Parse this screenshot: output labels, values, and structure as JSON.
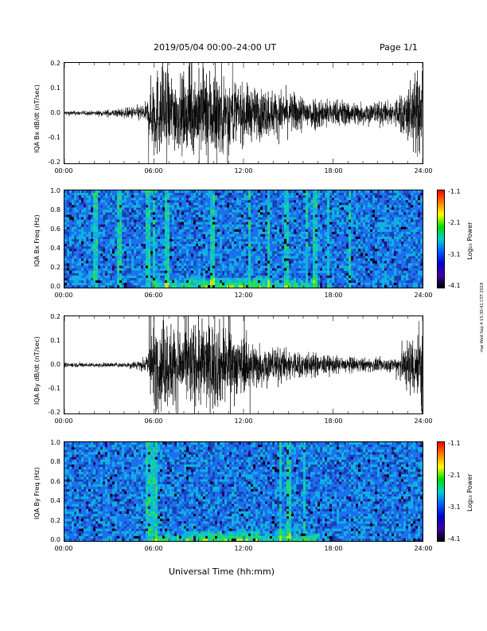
{
  "header": {
    "title": "2019/05/04  00:00–24:00 UT",
    "page": "Page 1/1"
  },
  "footer": {
    "xlabel": "Universal Time (hh:mm)"
  },
  "stamp": "mai Wed Sep 4 15:30:41 CST 2019",
  "colors": {
    "trace": "#000000"
  },
  "chart_data": [
    {
      "type": "line",
      "ylabel": "IQA Bx dB/dt (nT/sec)",
      "xlim": [
        0,
        24
      ],
      "ylim": [
        -0.2,
        0.2
      ],
      "xticks": [
        "00:00",
        "06:00",
        "12:00",
        "18:00",
        "24:00"
      ],
      "yticks": [
        "0.2",
        "0.1",
        "0.0",
        "-0.1",
        "-0.2"
      ],
      "series": [
        {
          "x_hours": [
            0,
            2,
            4,
            5.5,
            6,
            8,
            10,
            12,
            14,
            16,
            18,
            20,
            22,
            24
          ],
          "amplitude_envelope": [
            0.01,
            0.01,
            0.02,
            0.04,
            0.2,
            0.15,
            0.2,
            0.12,
            0.1,
            0.08,
            0.06,
            0.05,
            0.05,
            0.2
          ]
        }
      ]
    },
    {
      "type": "heatmap",
      "ylabel": "IQA Bx Freq (Hz)",
      "xlim": [
        0,
        24
      ],
      "ylim": [
        0,
        1.0
      ],
      "xticks": [
        "00:00",
        "06:00",
        "12:00",
        "18:00",
        "24:00"
      ],
      "yticks": [
        "1.0",
        "0.8",
        "0.6",
        "0.4",
        "0.2",
        "0.0"
      ],
      "colorbar": {
        "label": "Log₁₀ Power",
        "ticks": [
          "-1.1",
          "-2.1",
          "-3.1",
          "-4.1"
        ]
      }
    },
    {
      "type": "line",
      "ylabel": "IQA By dB/dt (nT/sec)",
      "xlim": [
        0,
        24
      ],
      "ylim": [
        -0.2,
        0.2
      ],
      "xticks": [
        "00:00",
        "06:00",
        "12:00",
        "18:00",
        "24:00"
      ],
      "yticks": [
        "0.2",
        "0.1",
        "0.0",
        "-0.1",
        "-0.2"
      ],
      "series": [
        {
          "x_hours": [
            0,
            2,
            4,
            5.5,
            6,
            8,
            10,
            12,
            14,
            16,
            18,
            20,
            22,
            24
          ],
          "amplitude_envelope": [
            0.01,
            0.01,
            0.01,
            0.03,
            0.2,
            0.18,
            0.2,
            0.12,
            0.08,
            0.06,
            0.04,
            0.03,
            0.03,
            0.2
          ]
        }
      ]
    },
    {
      "type": "heatmap",
      "ylabel": "IQA By Freq (Hz)",
      "xlim": [
        0,
        24
      ],
      "ylim": [
        0,
        1.0
      ],
      "xticks": [
        "00:00",
        "06:00",
        "12:00",
        "18:00",
        "24:00"
      ],
      "yticks": [
        "1.0",
        "0.8",
        "0.6",
        "0.4",
        "0.2",
        "0.0"
      ],
      "colorbar": {
        "label": "Log₁₀ Power",
        "ticks": [
          "-1.1",
          "-2.1",
          "-3.1",
          "-4.1"
        ]
      }
    }
  ]
}
